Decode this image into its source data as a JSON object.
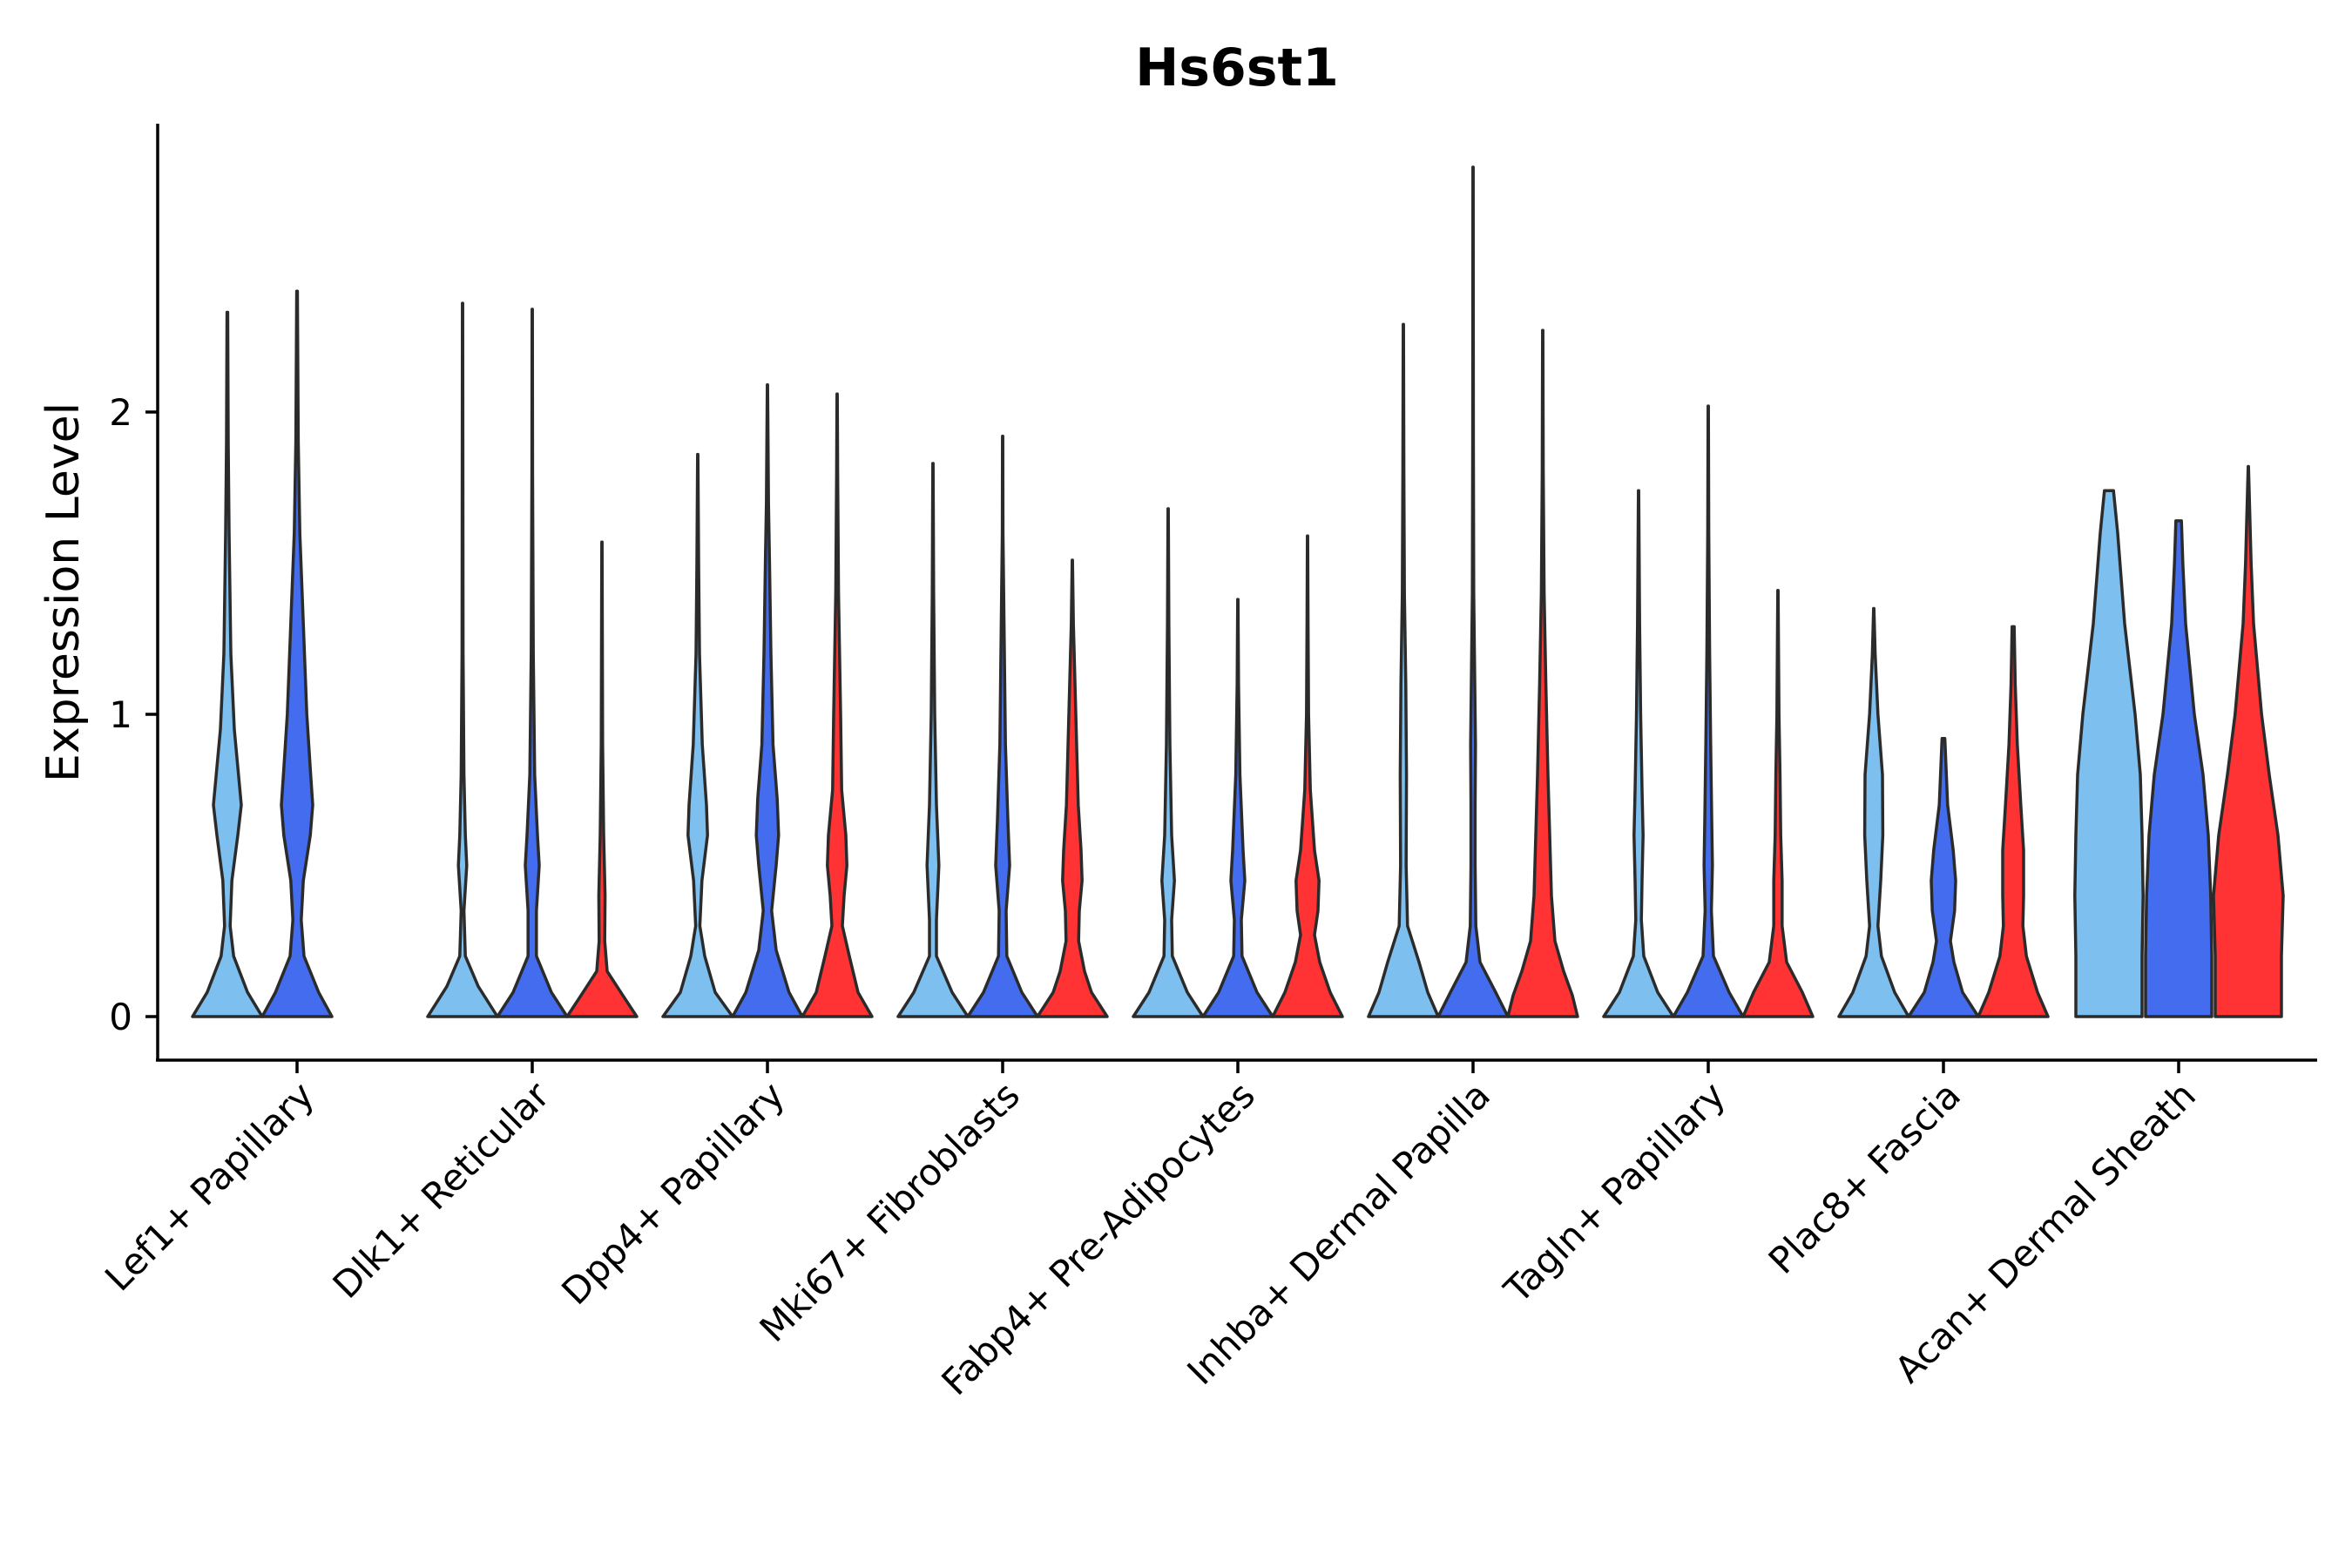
{
  "chart_data": {
    "type": "violin",
    "title": "Hs6st1",
    "xlabel": "",
    "ylabel": "Expression Level",
    "ylim": [
      -0.14,
      2.95
    ],
    "yticks": [
      0,
      1,
      2
    ],
    "grid": false,
    "legend": "none",
    "series_colors": [
      "#7DBFEE",
      "#436DEE",
      "#FF3333"
    ],
    "categories": [
      "Lef1+ Papillary",
      "Dlk1+ Reticular",
      "Dpp4+ Papillary",
      "Mki67+ Fibroblasts",
      "Fabp4+ Pre-Adipocytes",
      "Inhba+ Dermal Papilla",
      "Tagln+ Papillary",
      "Plac8+ Fascia",
      "Acan+ Dermal Sheath"
    ],
    "violins": [
      {
        "category": 0,
        "group": 0,
        "max": 2.33,
        "profile": [
          [
            0,
            1.0
          ],
          [
            0.08,
            0.58
          ],
          [
            0.2,
            0.18
          ],
          [
            0.3,
            0.08
          ],
          [
            0.45,
            0.13
          ],
          [
            0.6,
            0.3
          ],
          [
            0.7,
            0.4
          ],
          [
            0.8,
            0.32
          ],
          [
            0.95,
            0.2
          ],
          [
            1.2,
            0.1
          ],
          [
            1.6,
            0.05
          ],
          [
            1.9,
            0.025
          ],
          [
            2.33,
            0.01
          ]
        ]
      },
      {
        "category": 0,
        "group": 1,
        "max": 2.4,
        "profile": [
          [
            0,
            1.0
          ],
          [
            0.08,
            0.62
          ],
          [
            0.2,
            0.2
          ],
          [
            0.32,
            0.12
          ],
          [
            0.45,
            0.18
          ],
          [
            0.6,
            0.38
          ],
          [
            0.7,
            0.45
          ],
          [
            0.82,
            0.38
          ],
          [
            1.0,
            0.28
          ],
          [
            1.3,
            0.18
          ],
          [
            1.6,
            0.08
          ],
          [
            1.9,
            0.035
          ],
          [
            2.4,
            0.01
          ]
        ]
      },
      {
        "category": 1,
        "group": 0,
        "max": 2.36,
        "profile": [
          [
            0,
            1.0
          ],
          [
            0.1,
            0.45
          ],
          [
            0.2,
            0.08
          ],
          [
            0.35,
            0.04
          ],
          [
            0.5,
            0.12
          ],
          [
            0.6,
            0.08
          ],
          [
            0.8,
            0.04
          ],
          [
            1.2,
            0.015
          ],
          [
            2.36,
            0.005
          ]
        ]
      },
      {
        "category": 1,
        "group": 1,
        "max": 2.34,
        "profile": [
          [
            0,
            1.0
          ],
          [
            0.08,
            0.55
          ],
          [
            0.2,
            0.12
          ],
          [
            0.35,
            0.12
          ],
          [
            0.5,
            0.2
          ],
          [
            0.6,
            0.15
          ],
          [
            0.8,
            0.07
          ],
          [
            1.2,
            0.03
          ],
          [
            1.8,
            0.01
          ],
          [
            2.34,
            0.005
          ]
        ]
      },
      {
        "category": 1,
        "group": 2,
        "max": 1.57,
        "profile": [
          [
            0,
            1.0
          ],
          [
            0.07,
            0.6
          ],
          [
            0.15,
            0.15
          ],
          [
            0.25,
            0.08
          ],
          [
            0.4,
            0.09
          ],
          [
            0.6,
            0.05
          ],
          [
            0.9,
            0.02
          ],
          [
            1.57,
            0.005
          ]
        ]
      },
      {
        "category": 2,
        "group": 0,
        "max": 1.86,
        "profile": [
          [
            0,
            1.0
          ],
          [
            0.08,
            0.5
          ],
          [
            0.2,
            0.2
          ],
          [
            0.3,
            0.06
          ],
          [
            0.45,
            0.12
          ],
          [
            0.6,
            0.28
          ],
          [
            0.7,
            0.25
          ],
          [
            0.9,
            0.13
          ],
          [
            1.2,
            0.05
          ],
          [
            1.5,
            0.025
          ],
          [
            1.86,
            0.005
          ]
        ]
      },
      {
        "category": 2,
        "group": 1,
        "max": 2.09,
        "profile": [
          [
            0,
            1.0
          ],
          [
            0.08,
            0.62
          ],
          [
            0.22,
            0.25
          ],
          [
            0.35,
            0.12
          ],
          [
            0.5,
            0.25
          ],
          [
            0.6,
            0.32
          ],
          [
            0.72,
            0.28
          ],
          [
            0.9,
            0.16
          ],
          [
            1.2,
            0.1
          ],
          [
            1.5,
            0.06
          ],
          [
            1.7,
            0.03
          ],
          [
            2.09,
            0.005
          ]
        ]
      },
      {
        "category": 2,
        "group": 2,
        "max": 2.06,
        "profile": [
          [
            0,
            1.0
          ],
          [
            0.08,
            0.6
          ],
          [
            0.2,
            0.35
          ],
          [
            0.3,
            0.15
          ],
          [
            0.4,
            0.2
          ],
          [
            0.5,
            0.28
          ],
          [
            0.6,
            0.25
          ],
          [
            0.75,
            0.13
          ],
          [
            1.0,
            0.1
          ],
          [
            1.4,
            0.04
          ],
          [
            1.8,
            0.015
          ],
          [
            2.06,
            0.005
          ]
        ]
      },
      {
        "category": 3,
        "group": 0,
        "max": 1.83,
        "profile": [
          [
            0,
            1.0
          ],
          [
            0.08,
            0.55
          ],
          [
            0.2,
            0.1
          ],
          [
            0.32,
            0.1
          ],
          [
            0.5,
            0.17
          ],
          [
            0.7,
            0.1
          ],
          [
            1.0,
            0.05
          ],
          [
            1.4,
            0.02
          ],
          [
            1.83,
            0.005
          ]
        ]
      },
      {
        "category": 3,
        "group": 1,
        "max": 1.92,
        "profile": [
          [
            0,
            1.0
          ],
          [
            0.08,
            0.55
          ],
          [
            0.2,
            0.12
          ],
          [
            0.35,
            0.1
          ],
          [
            0.5,
            0.2
          ],
          [
            0.65,
            0.15
          ],
          [
            0.9,
            0.08
          ],
          [
            1.3,
            0.04
          ],
          [
            1.6,
            0.01
          ],
          [
            1.92,
            0.005
          ]
        ]
      },
      {
        "category": 3,
        "group": 2,
        "max": 1.51,
        "profile": [
          [
            0,
            1.0
          ],
          [
            0.08,
            0.55
          ],
          [
            0.15,
            0.35
          ],
          [
            0.25,
            0.18
          ],
          [
            0.35,
            0.2
          ],
          [
            0.45,
            0.28
          ],
          [
            0.55,
            0.25
          ],
          [
            0.7,
            0.17
          ],
          [
            1.0,
            0.1
          ],
          [
            1.3,
            0.03
          ],
          [
            1.51,
            0.005
          ]
        ]
      },
      {
        "category": 4,
        "group": 0,
        "max": 1.68,
        "profile": [
          [
            0,
            1.0
          ],
          [
            0.08,
            0.55
          ],
          [
            0.2,
            0.12
          ],
          [
            0.32,
            0.1
          ],
          [
            0.45,
            0.18
          ],
          [
            0.6,
            0.1
          ],
          [
            0.9,
            0.05
          ],
          [
            1.3,
            0.02
          ],
          [
            1.68,
            0.005
          ]
        ]
      },
      {
        "category": 4,
        "group": 1,
        "max": 1.38,
        "profile": [
          [
            0,
            1.0
          ],
          [
            0.08,
            0.55
          ],
          [
            0.2,
            0.12
          ],
          [
            0.32,
            0.1
          ],
          [
            0.45,
            0.2
          ],
          [
            0.55,
            0.15
          ],
          [
            0.8,
            0.06
          ],
          [
            1.1,
            0.02
          ],
          [
            1.38,
            0.005
          ]
        ]
      },
      {
        "category": 4,
        "group": 2,
        "max": 1.59,
        "profile": [
          [
            0,
            1.0
          ],
          [
            0.08,
            0.65
          ],
          [
            0.18,
            0.35
          ],
          [
            0.27,
            0.2
          ],
          [
            0.35,
            0.3
          ],
          [
            0.45,
            0.33
          ],
          [
            0.55,
            0.2
          ],
          [
            0.75,
            0.08
          ],
          [
            1.0,
            0.03
          ],
          [
            1.3,
            0.015
          ],
          [
            1.59,
            0.005
          ]
        ]
      },
      {
        "category": 5,
        "group": 0,
        "max": 2.29,
        "profile": [
          [
            0,
            1.0
          ],
          [
            0.08,
            0.7
          ],
          [
            0.18,
            0.45
          ],
          [
            0.3,
            0.12
          ],
          [
            0.5,
            0.08
          ],
          [
            0.8,
            0.09
          ],
          [
            1.1,
            0.07
          ],
          [
            1.4,
            0.03
          ],
          [
            1.8,
            0.015
          ],
          [
            2.29,
            0.005
          ]
        ]
      },
      {
        "category": 5,
        "group": 1,
        "max": 2.81,
        "profile": [
          [
            0,
            1.0
          ],
          [
            0.08,
            0.65
          ],
          [
            0.18,
            0.2
          ],
          [
            0.3,
            0.08
          ],
          [
            0.5,
            0.06
          ],
          [
            0.7,
            0.06
          ],
          [
            0.9,
            0.07
          ],
          [
            1.1,
            0.05
          ],
          [
            1.4,
            0.02
          ],
          [
            1.9,
            0.01
          ],
          [
            2.81,
            0.004
          ]
        ]
      },
      {
        "category": 5,
        "group": 2,
        "max": 2.27,
        "profile": [
          [
            0,
            1.0
          ],
          [
            0.07,
            0.85
          ],
          [
            0.15,
            0.6
          ],
          [
            0.25,
            0.35
          ],
          [
            0.4,
            0.25
          ],
          [
            0.6,
            0.2
          ],
          [
            0.8,
            0.15
          ],
          [
            1.1,
            0.09
          ],
          [
            1.4,
            0.04
          ],
          [
            1.8,
            0.015
          ],
          [
            2.27,
            0.005
          ]
        ]
      },
      {
        "category": 6,
        "group": 0,
        "max": 1.74,
        "profile": [
          [
            0,
            1.0
          ],
          [
            0.08,
            0.55
          ],
          [
            0.2,
            0.15
          ],
          [
            0.32,
            0.08
          ],
          [
            0.45,
            0.1
          ],
          [
            0.6,
            0.13
          ],
          [
            0.75,
            0.1
          ],
          [
            1.0,
            0.06
          ],
          [
            1.3,
            0.03
          ],
          [
            1.74,
            0.005
          ]
        ]
      },
      {
        "category": 6,
        "group": 1,
        "max": 2.02,
        "profile": [
          [
            0,
            1.0
          ],
          [
            0.08,
            0.6
          ],
          [
            0.2,
            0.15
          ],
          [
            0.35,
            0.09
          ],
          [
            0.5,
            0.12
          ],
          [
            0.65,
            0.1
          ],
          [
            0.9,
            0.07
          ],
          [
            1.2,
            0.04
          ],
          [
            1.6,
            0.015
          ],
          [
            2.02,
            0.005
          ]
        ]
      },
      {
        "category": 6,
        "group": 2,
        "max": 1.41,
        "profile": [
          [
            0,
            1.0
          ],
          [
            0.08,
            0.7
          ],
          [
            0.18,
            0.25
          ],
          [
            0.3,
            0.12
          ],
          [
            0.45,
            0.12
          ],
          [
            0.6,
            0.08
          ],
          [
            0.8,
            0.06
          ],
          [
            1.0,
            0.03
          ],
          [
            1.41,
            0.005
          ]
        ]
      },
      {
        "category": 7,
        "group": 0,
        "max": 1.35,
        "profile": [
          [
            0,
            1.0
          ],
          [
            0.08,
            0.6
          ],
          [
            0.2,
            0.22
          ],
          [
            0.3,
            0.12
          ],
          [
            0.45,
            0.2
          ],
          [
            0.6,
            0.26
          ],
          [
            0.8,
            0.25
          ],
          [
            1.0,
            0.12
          ],
          [
            1.2,
            0.04
          ],
          [
            1.35,
            0.005
          ]
        ]
      },
      {
        "category": 7,
        "group": 1,
        "max": 0.92,
        "profile": [
          [
            0,
            1.0
          ],
          [
            0.08,
            0.55
          ],
          [
            0.18,
            0.3
          ],
          [
            0.25,
            0.2
          ],
          [
            0.35,
            0.32
          ],
          [
            0.45,
            0.35
          ],
          [
            0.55,
            0.28
          ],
          [
            0.7,
            0.12
          ],
          [
            0.92,
            0.04
          ]
        ]
      },
      {
        "category": 7,
        "group": 2,
        "max": 1.29,
        "profile": [
          [
            0,
            1.0
          ],
          [
            0.08,
            0.7
          ],
          [
            0.2,
            0.38
          ],
          [
            0.3,
            0.28
          ],
          [
            0.4,
            0.3
          ],
          [
            0.55,
            0.3
          ],
          [
            0.7,
            0.22
          ],
          [
            0.9,
            0.12
          ],
          [
            1.1,
            0.06
          ],
          [
            1.29,
            0.03
          ]
        ]
      },
      {
        "category": 8,
        "group": 0,
        "max": 1.74,
        "profile": [
          [
            0,
            0.95
          ],
          [
            0.2,
            0.95
          ],
          [
            0.4,
            0.98
          ],
          [
            0.6,
            0.95
          ],
          [
            0.8,
            0.9
          ],
          [
            1.0,
            0.75
          ],
          [
            1.3,
            0.45
          ],
          [
            1.6,
            0.25
          ],
          [
            1.74,
            0.13
          ]
        ]
      },
      {
        "category": 8,
        "group": 1,
        "max": 1.64,
        "profile": [
          [
            0,
            0.95
          ],
          [
            0.2,
            0.95
          ],
          [
            0.4,
            0.92
          ],
          [
            0.6,
            0.85
          ],
          [
            0.8,
            0.7
          ],
          [
            1.0,
            0.45
          ],
          [
            1.3,
            0.2
          ],
          [
            1.5,
            0.12
          ],
          [
            1.64,
            0.08
          ]
        ]
      },
      {
        "category": 8,
        "group": 2,
        "max": 1.82,
        "profile": [
          [
            0,
            0.95
          ],
          [
            0.2,
            0.95
          ],
          [
            0.4,
            1.0
          ],
          [
            0.6,
            0.85
          ],
          [
            0.8,
            0.6
          ],
          [
            1.0,
            0.38
          ],
          [
            1.3,
            0.15
          ],
          [
            1.5,
            0.08
          ],
          [
            1.82,
            0.005
          ]
        ]
      }
    ]
  }
}
